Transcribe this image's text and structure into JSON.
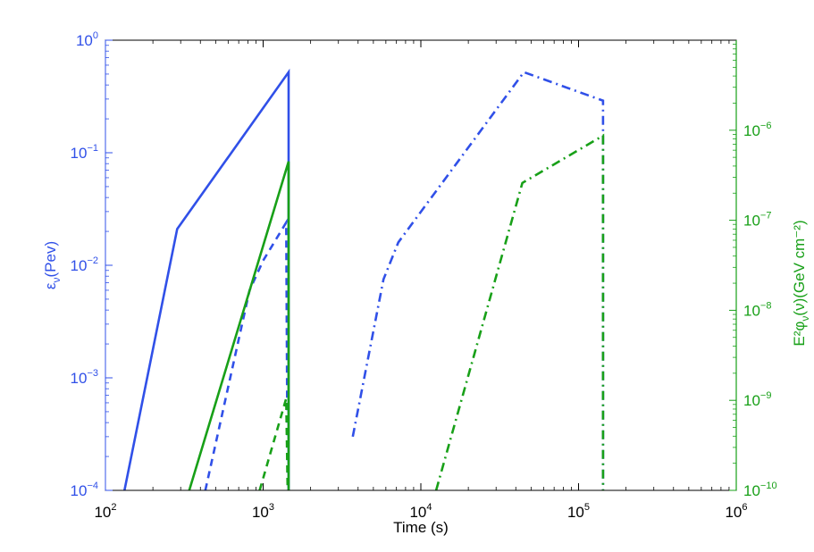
{
  "chart_data": {
    "type": "line",
    "xlabel": "Time (s)",
    "ylabel_left": "ε_ν(Pev)",
    "ylabel_right": "E²φ_ν(ν)(GeV cm⁻²)",
    "xscale": "log",
    "yscale_left": "log",
    "yscale_right": "log",
    "xlim": [
      100,
      1000000
    ],
    "ylim_left": [
      0.0001,
      1
    ],
    "ylim_right": [
      1e-10,
      1e-05
    ],
    "grid": false,
    "legend": "none",
    "colors": {
      "left_axis": "#3050e8",
      "right_axis": "#18a018",
      "frame": "#000000"
    },
    "x_ticks": [
      {
        "value": 100,
        "base": "10",
        "exp": "2"
      },
      {
        "value": 1000,
        "base": "10",
        "exp": "3"
      },
      {
        "value": 10000,
        "base": "10",
        "exp": "4"
      },
      {
        "value": 100000,
        "base": "10",
        "exp": "5"
      },
      {
        "value": 1000000,
        "base": "10",
        "exp": "6"
      }
    ],
    "y_left_ticks": [
      {
        "value": 0.0001,
        "base": "10",
        "exp": "−4"
      },
      {
        "value": 0.001,
        "base": "10",
        "exp": "−3"
      },
      {
        "value": 0.01,
        "base": "10",
        "exp": "−2"
      },
      {
        "value": 0.1,
        "base": "10",
        "exp": "−1"
      },
      {
        "value": 1,
        "base": "10",
        "exp": "0"
      }
    ],
    "y_right_ticks": [
      {
        "value": 1e-10,
        "base": "10",
        "exp": "−10"
      },
      {
        "value": 1e-09,
        "base": "10",
        "exp": "−9"
      },
      {
        "value": 1e-08,
        "base": "10",
        "exp": "−8"
      },
      {
        "value": 1e-07,
        "base": "10",
        "exp": "−7"
      },
      {
        "value": 1e-06,
        "base": "10",
        "exp": "−6"
      }
    ],
    "series": [
      {
        "axis": "left",
        "color": "#3050e8",
        "style": "solid",
        "points": [
          [
            132,
            0.0001
          ],
          [
            285,
            0.021
          ],
          [
            1450,
            0.52
          ],
          [
            1450,
            0.0001
          ]
        ]
      },
      {
        "axis": "left",
        "color": "#3050e8",
        "style": "dashed",
        "points": [
          [
            430,
            0.0001
          ],
          [
            820,
            0.006
          ],
          [
            1000,
            0.011
          ],
          [
            1400,
            0.024
          ],
          [
            1430,
            0.0001
          ]
        ]
      },
      {
        "axis": "left",
        "color": "#3050e8",
        "style": "dashdot",
        "points": [
          [
            3700,
            0.0003
          ],
          [
            5800,
            0.0075
          ],
          [
            7200,
            0.016
          ],
          [
            45000,
            0.52
          ],
          [
            143000,
            0.29
          ],
          [
            143000,
            0.0001
          ]
        ]
      },
      {
        "axis": "right",
        "color": "#18a018",
        "style": "solid",
        "points": [
          [
            340,
            1e-10
          ],
          [
            1450,
            4.5e-07
          ],
          [
            1450,
            1e-10
          ]
        ]
      },
      {
        "axis": "right",
        "color": "#18a018",
        "style": "dashed",
        "points": [
          [
            950,
            1e-10
          ],
          [
            1400,
            1.05e-09
          ],
          [
            1430,
            1e-10
          ]
        ]
      },
      {
        "axis": "right",
        "color": "#18a018",
        "style": "dashdot",
        "points": [
          [
            12500,
            1e-10
          ],
          [
            44000,
            2.6e-07
          ],
          [
            143000,
            8.7e-07
          ],
          [
            143000,
            1e-10
          ]
        ]
      }
    ]
  }
}
